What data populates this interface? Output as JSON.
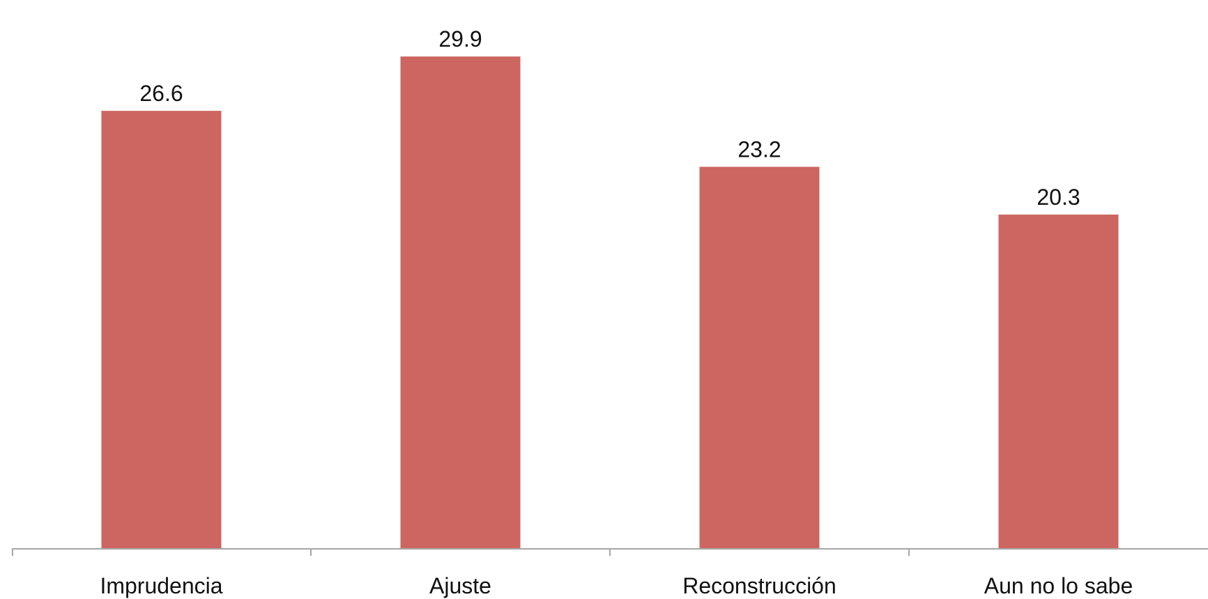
{
  "chart_data": {
    "type": "bar",
    "categories": [
      "Imprudencia",
      "Ajuste",
      "Reconstrucción",
      "Aun no lo sabe"
    ],
    "values": [
      26.6,
      29.9,
      23.2,
      20.3
    ],
    "data_labels": [
      "26.6",
      "29.9",
      "23.2",
      "20.3"
    ],
    "title": "",
    "xlabel": "",
    "ylabel": "",
    "ylim": [
      0,
      32.4
    ],
    "grid": false,
    "legend": "none",
    "bar_color": "#cd6660",
    "axis_color": "#a6a6a6"
  }
}
